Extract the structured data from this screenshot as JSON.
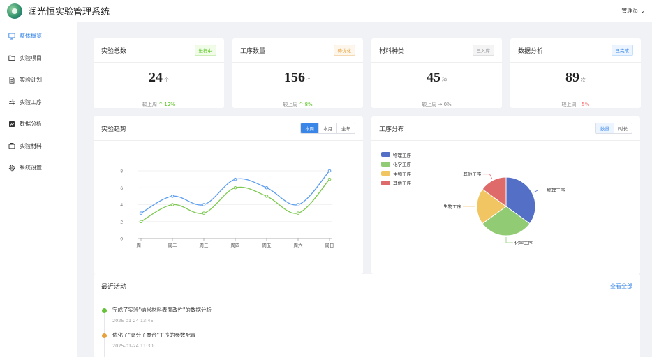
{
  "app": {
    "title": "润光恒实验管理系统",
    "user": "管理员"
  },
  "sidebar": {
    "items": [
      {
        "label": "整体概览",
        "icon": "monitor-icon",
        "active": true
      },
      {
        "label": "实验项目",
        "icon": "folder-icon",
        "active": false
      },
      {
        "label": "实验计划",
        "icon": "document-icon",
        "active": false
      },
      {
        "label": "实验工序",
        "icon": "sliders-icon",
        "active": false
      },
      {
        "label": "数据分析",
        "icon": "chart-icon",
        "active": false
      },
      {
        "label": "实验材料",
        "icon": "box-icon",
        "active": false
      },
      {
        "label": "系统设置",
        "icon": "gear-icon",
        "active": false
      }
    ]
  },
  "stats": [
    {
      "title": "实验总数",
      "badge": "进行中",
      "badge_color": "#52c41a",
      "value": "24",
      "unit": "个",
      "trend_label": "较上周",
      "trend_arrow": "^",
      "trend_value": "12%",
      "trend_color": "#52c41a"
    },
    {
      "title": "工序数量",
      "badge": "待优化",
      "badge_color": "#e6a23c",
      "value": "156",
      "unit": "个",
      "trend_label": "较上周",
      "trend_arrow": "^",
      "trend_value": "8%",
      "trend_color": "#52c41a"
    },
    {
      "title": "材料种类",
      "badge": "已入库",
      "badge_color": "#909399",
      "value": "45",
      "unit": "种",
      "trend_label": "较上周",
      "trend_arrow": "→",
      "trend_value": "0%",
      "trend_color": "#888888"
    },
    {
      "title": "数据分析",
      "badge": "已完成",
      "badge_color": "#3a86e8",
      "value": "89",
      "unit": "次",
      "trend_label": "较上周",
      "trend_arrow": "ˇ",
      "trend_value": "5%",
      "trend_color": "#f56c6c"
    }
  ],
  "trend_panel": {
    "title": "实验趋势",
    "tabs": [
      "本周",
      "本月",
      "全年"
    ],
    "active_tab": 0
  },
  "process_panel": {
    "title": "工序分布",
    "tabs": [
      "数量",
      "时长"
    ],
    "active_tab": 0
  },
  "chart_data": [
    {
      "type": "line",
      "categories": [
        "周一",
        "周二",
        "周三",
        "周四",
        "周五",
        "周六",
        "周日"
      ],
      "series": [
        {
          "values": [
            3,
            5,
            4,
            7,
            6,
            4,
            8
          ],
          "color": "#5b9cf0"
        },
        {
          "values": [
            2,
            4,
            3,
            6,
            5,
            3,
            7
          ],
          "color": "#7cc94f"
        }
      ],
      "ylim": [
        0,
        8
      ],
      "yticks": [
        0,
        2,
        4,
        6,
        8
      ],
      "grid": true,
      "smooth": true
    },
    {
      "type": "pie",
      "labels": [
        "物理工序",
        "化学工序",
        "生物工序",
        "其他工序"
      ],
      "values": [
        35,
        30,
        20,
        15
      ],
      "colors": [
        "#5470c6",
        "#91cc75",
        "#f2c563",
        "#df6a6a"
      ],
      "legend": "top-left"
    }
  ],
  "activity": {
    "title": "最近活动",
    "view_all": "查看全部",
    "items": [
      {
        "text": "完成了实验\"纳米材料表面改性\"的数据分析",
        "time": "2025-01-24 13:45",
        "color": "#67c23a"
      },
      {
        "text": "优化了\"高分子聚合\"工序的参数配置",
        "time": "2025-01-24 11:30",
        "color": "#e6a23c"
      }
    ]
  }
}
